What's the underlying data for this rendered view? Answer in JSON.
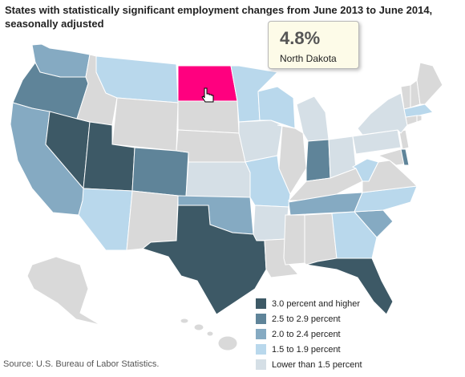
{
  "title": "States with statistically significant employment changes from June 2013 to June 2014, seasonally adjusted",
  "tooltip": {
    "value": "4.8%",
    "state": "North Dakota"
  },
  "legend": [
    {
      "label": "3.0 percent and higher",
      "color": "#3d5966"
    },
    {
      "label": "2.5 to 2.9 percent",
      "color": "#5f8499"
    },
    {
      "label": "2.0 to 2.4 percent",
      "color": "#85aac2"
    },
    {
      "label": "1.5 to 1.9 percent",
      "color": "#b9d8ec"
    },
    {
      "label": "Lower than 1.5 percent",
      "color": "#d5dfe6"
    }
  ],
  "colors": {
    "not_significant": "#d9d9d9",
    "highlight": "#ff007f",
    "border": "#ffffff"
  },
  "source": "Source: U.S. Bureau of Labor Statistics."
}
